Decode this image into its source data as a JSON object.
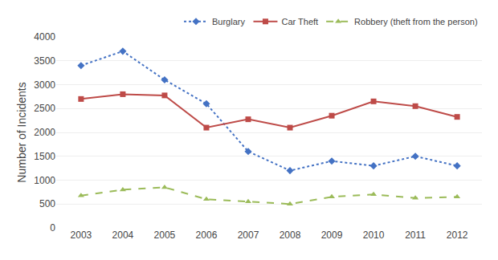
{
  "chart_data": {
    "type": "line",
    "ylabel": "Number of Incidents",
    "categories": [
      "2003",
      "2004",
      "2005",
      "2006",
      "2007",
      "2008",
      "2009",
      "2010",
      "2011",
      "2012"
    ],
    "series": [
      {
        "name": "Burglary",
        "color": "#4472C4",
        "line_style": "dotted",
        "marker": "diamond",
        "values": [
          3400,
          3700,
          3100,
          2600,
          1600,
          1200,
          1400,
          1300,
          1500,
          1300
        ]
      },
      {
        "name": "Car Theft",
        "color": "#BE4B48",
        "line_style": "solid",
        "marker": "square",
        "values": [
          2700,
          2800,
          2775,
          2100,
          2275,
          2100,
          2350,
          2650,
          2550,
          2325
        ]
      },
      {
        "name": "Robbery (theft from the person)",
        "color": "#9BBB59",
        "line_style": "dashed",
        "marker": "triangle",
        "values": [
          675,
          800,
          850,
          600,
          550,
          500,
          650,
          700,
          625,
          650
        ]
      }
    ],
    "ylim": [
      0,
      4000
    ],
    "yticks": [
      0,
      500,
      1000,
      1500,
      2000,
      2500,
      3000,
      3500,
      4000
    ],
    "grid": true,
    "legend": "upper right"
  }
}
